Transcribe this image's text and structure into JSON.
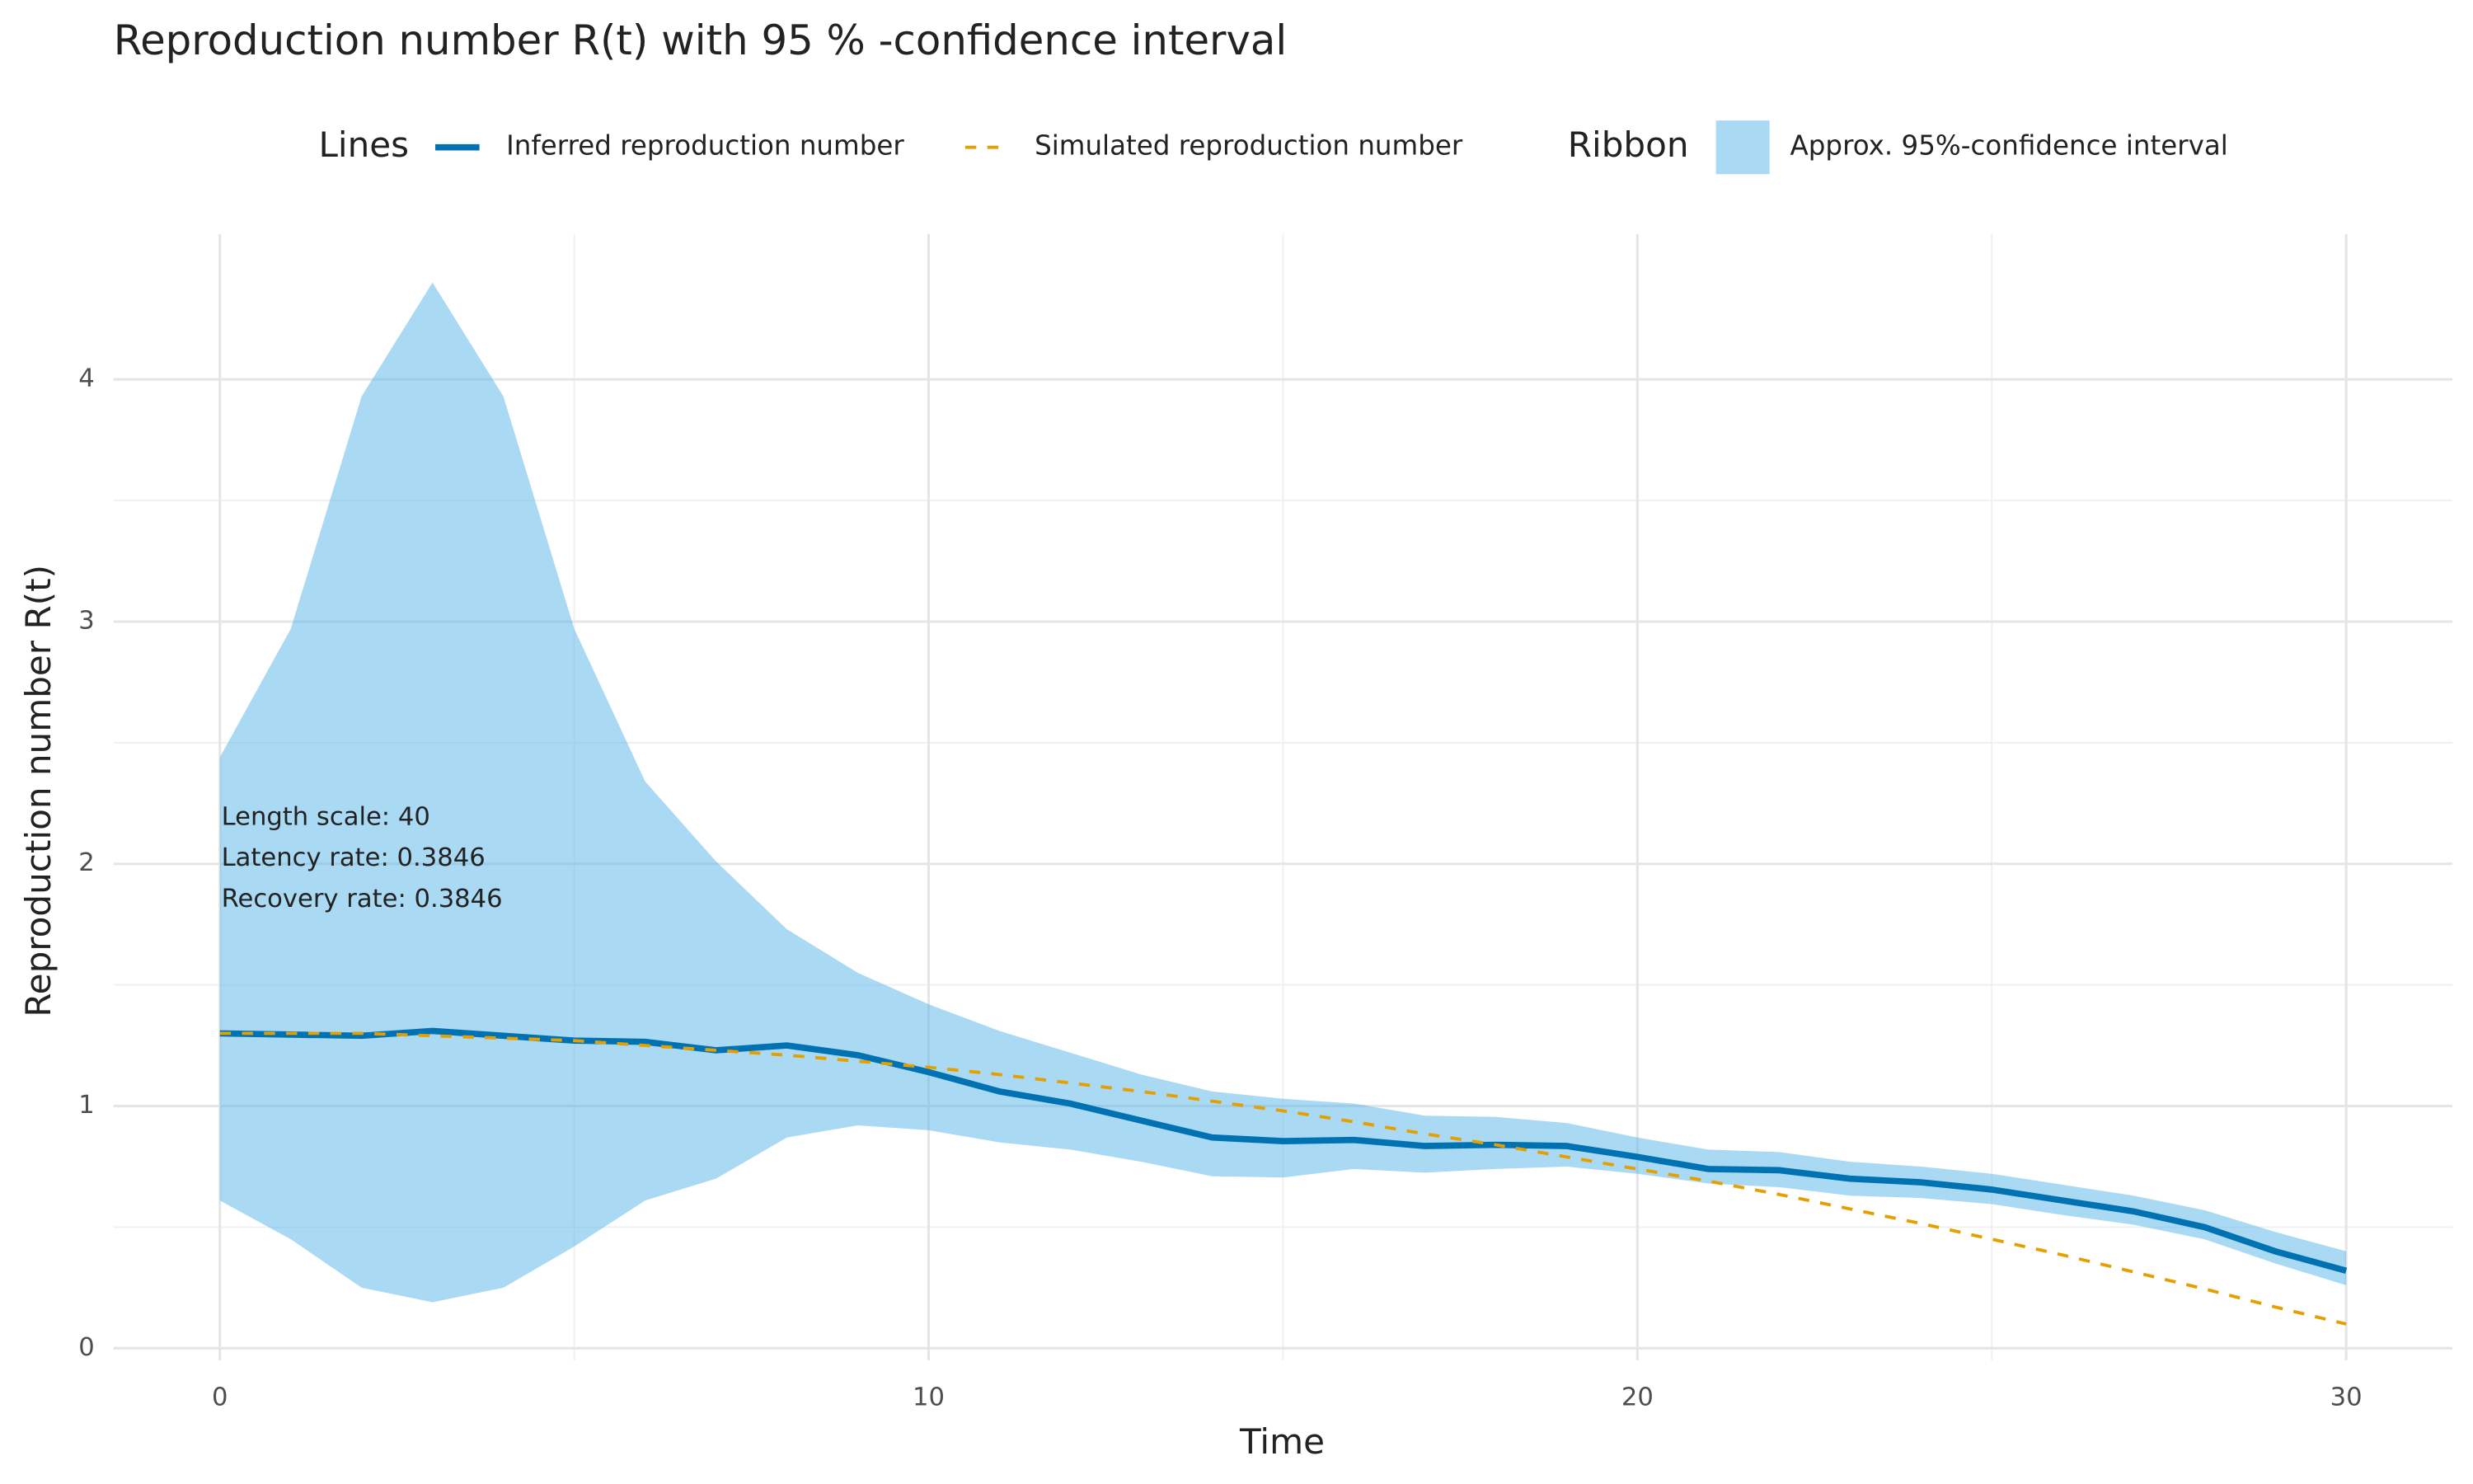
{
  "chart_data": {
    "type": "line",
    "title": "Reproduction number R(t) with 95 % -confidence interval",
    "x_label": "Time",
    "y_label": "Reproduction number R(t)",
    "legend_titles": {
      "lines": "Lines",
      "ribbon": "Ribbon"
    },
    "legend_position": "top",
    "grid": true,
    "x": [
      0,
      1,
      2,
      3,
      4,
      5,
      6,
      7,
      8,
      9,
      10,
      11,
      12,
      13,
      14,
      15,
      16,
      17,
      18,
      19,
      20,
      21,
      22,
      23,
      24,
      25,
      26,
      27,
      28,
      29,
      30
    ],
    "series": [
      {
        "name": "Inferred reproduction number",
        "color": "#0072b2",
        "style": "solid",
        "values": [
          1.3,
          1.295,
          1.29,
          1.31,
          1.29,
          1.27,
          1.265,
          1.23,
          1.25,
          1.21,
          1.14,
          1.06,
          1.01,
          0.94,
          0.87,
          0.855,
          0.86,
          0.835,
          0.84,
          0.835,
          0.79,
          0.74,
          0.735,
          0.7,
          0.685,
          0.655,
          0.61,
          0.565,
          0.5,
          0.4,
          0.32
        ]
      },
      {
        "name": "Simulated reproduction number",
        "color": "#e69f00",
        "style": "dashed",
        "values": [
          1.3,
          1.3,
          1.3,
          1.29,
          1.28,
          1.27,
          1.25,
          1.23,
          1.21,
          1.185,
          1.16,
          1.13,
          1.095,
          1.06,
          1.02,
          0.98,
          0.935,
          0.885,
          0.84,
          0.79,
          0.74,
          0.69,
          0.635,
          0.575,
          0.515,
          0.45,
          0.385,
          0.315,
          0.245,
          0.17,
          0.1
        ]
      }
    ],
    "ribbon": {
      "name": "Approx. 95%-confidence interval",
      "color": "#56b4e9",
      "upper": [
        2.44,
        2.97,
        3.93,
        4.4,
        3.93,
        2.97,
        2.34,
        2.01,
        1.73,
        1.55,
        1.42,
        1.31,
        1.22,
        1.13,
        1.06,
        1.03,
        1.01,
        0.96,
        0.955,
        0.93,
        0.87,
        0.82,
        0.81,
        0.77,
        0.75,
        0.72,
        0.675,
        0.63,
        0.57,
        0.48,
        0.4
      ],
      "lower": [
        0.61,
        0.45,
        0.25,
        0.19,
        0.25,
        0.42,
        0.61,
        0.7,
        0.87,
        0.92,
        0.9,
        0.85,
        0.82,
        0.77,
        0.71,
        0.705,
        0.74,
        0.725,
        0.74,
        0.75,
        0.72,
        0.68,
        0.665,
        0.63,
        0.62,
        0.595,
        0.55,
        0.51,
        0.45,
        0.35,
        0.26
      ]
    },
    "annotation": [
      "Length scale: 40",
      "Latency rate: 0.3846",
      "Recovery rate: 0.3846"
    ],
    "xlim": [
      -1.5,
      31.5
    ],
    "ylim": [
      -0.05,
      4.6
    ],
    "xticks": [
      0,
      10,
      20,
      30
    ],
    "yticks": [
      0,
      1,
      2,
      3,
      4
    ]
  }
}
